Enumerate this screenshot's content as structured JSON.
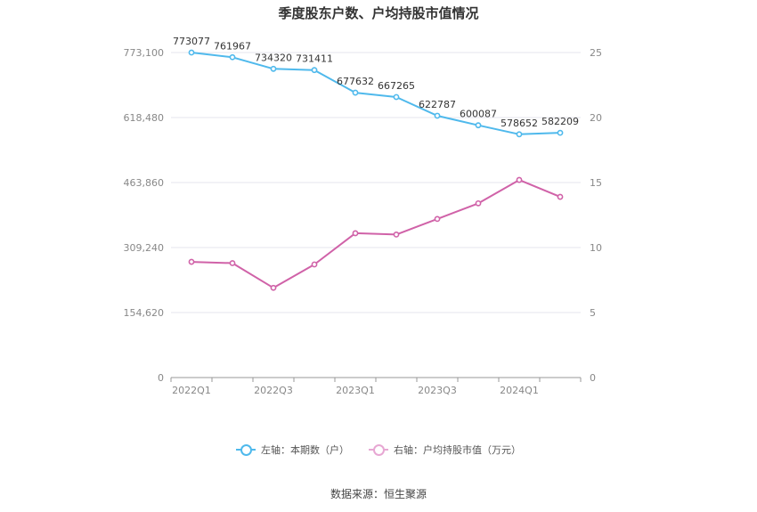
{
  "chart_data": {
    "type": "line",
    "title": "季度股东户数、户均持股市值情况",
    "x": [
      "2022Q1",
      "2022Q2",
      "2022Q3",
      "2022Q4",
      "2023Q1",
      "2023Q2",
      "2023Q3",
      "2023Q4",
      "2024Q1",
      "2024Q2"
    ],
    "x_tick_labels": [
      "2022Q1",
      "2022Q3",
      "2023Q1",
      "2023Q3",
      "2024Q1"
    ],
    "left_axis": {
      "ylim": [
        0,
        773100
      ],
      "tick_labels": [
        "0",
        "154,620",
        "309,240",
        "463,860",
        "618,480",
        "773,100"
      ],
      "tick_values": [
        0,
        154620,
        309240,
        463860,
        618480,
        773100
      ]
    },
    "right_axis": {
      "ylim": [
        0,
        25
      ],
      "tick_labels": [
        "0",
        "5",
        "10",
        "15",
        "20",
        "25"
      ],
      "tick_values": [
        0,
        5,
        10,
        15,
        20,
        25
      ]
    },
    "series": [
      {
        "name": "左轴：本期数（户）",
        "axis": "left",
        "color": "#4fb9ec",
        "values": [
          773077,
          761967,
          734320,
          731411,
          677632,
          667265,
          622787,
          600087,
          578652,
          582209
        ],
        "data_labels": [
          "773077",
          "761967",
          "734320",
          "731411",
          "677632",
          "667265",
          "622787",
          "600087",
          "578652",
          "582209"
        ]
      },
      {
        "name": "右轴：户均持股市值（万元）",
        "axis": "right",
        "color": "#d062a8",
        "values": [
          8.9,
          8.8,
          6.9,
          8.7,
          11.1,
          11.0,
          12.2,
          13.4,
          15.2,
          13.9
        ]
      }
    ],
    "grid": true,
    "legend_position": "bottom-center"
  },
  "source": "数据来源：恒生聚源"
}
